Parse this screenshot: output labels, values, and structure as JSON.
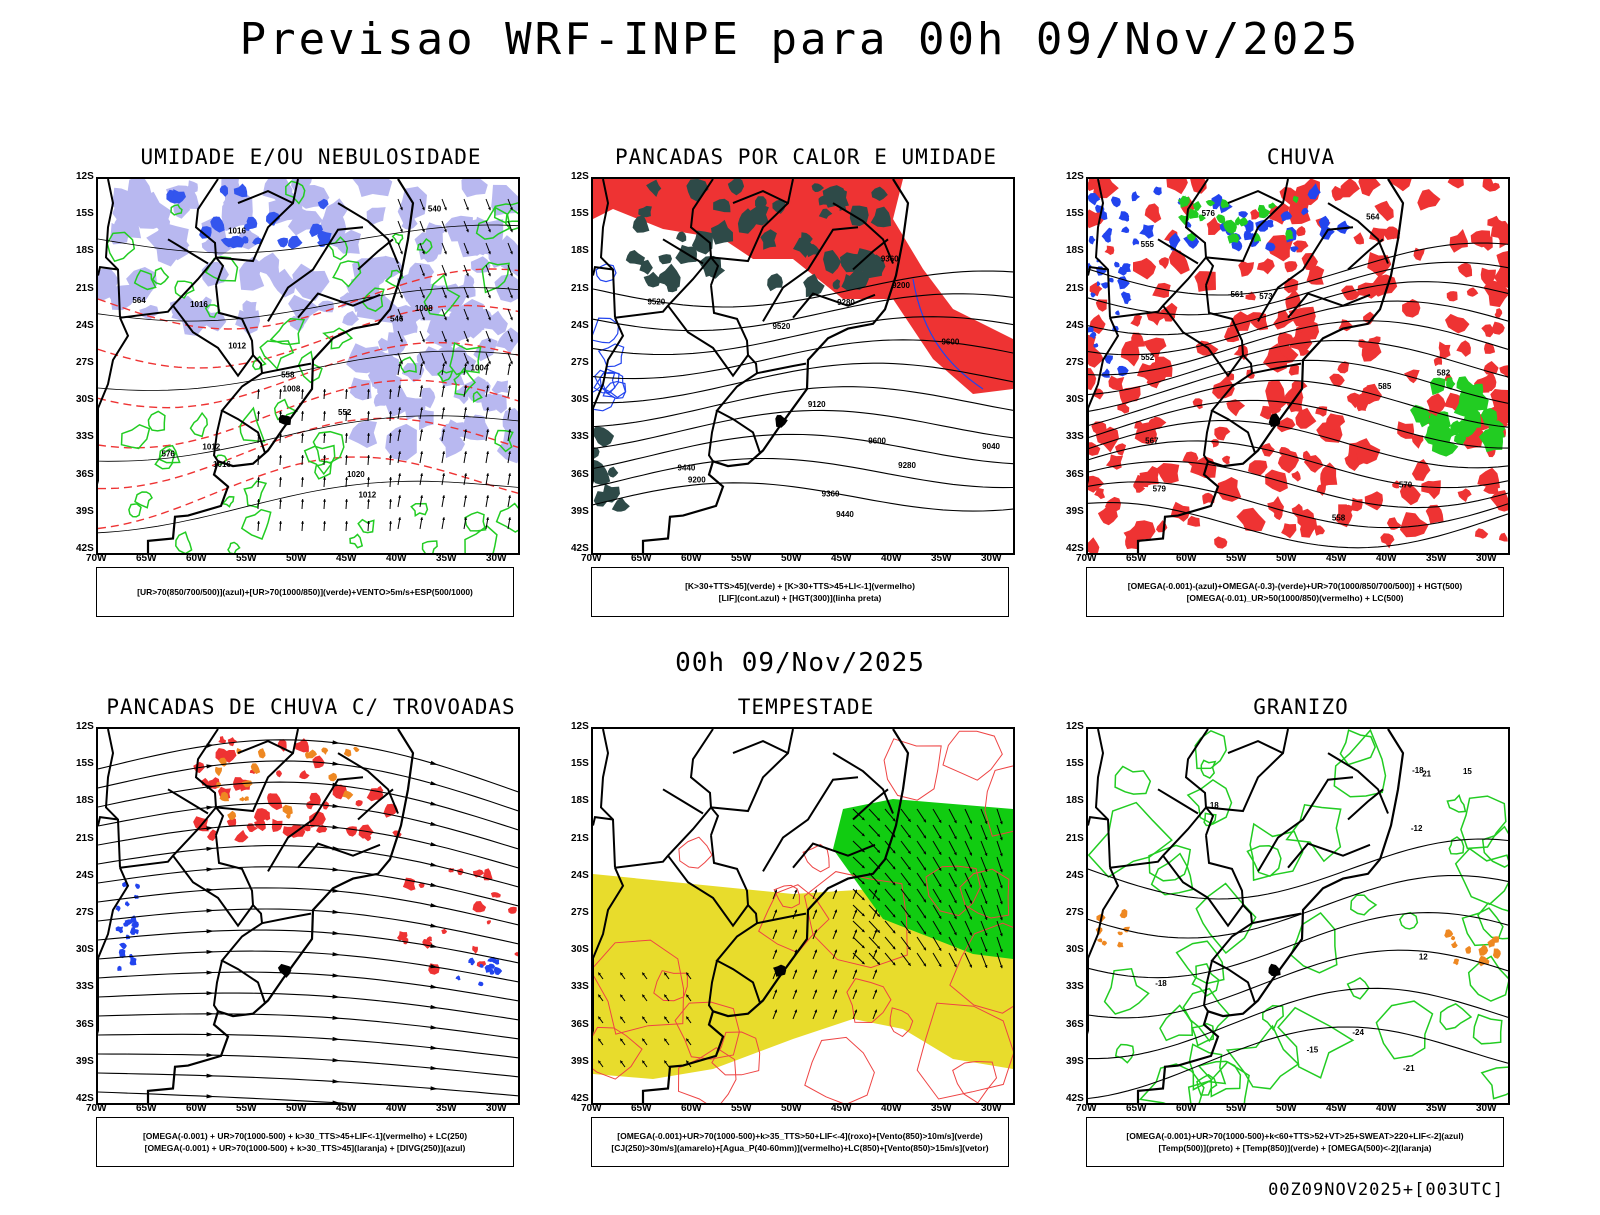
{
  "title": "Previsao WRF-INPE  para 00h 09/Nov/2025",
  "middle_title": "00h 09/Nov/2025",
  "footer": "00Z09NOV2025+[003UTC]",
  "y_ticks": [
    "12S",
    "15S",
    "18S",
    "21S",
    "24S",
    "27S",
    "30S",
    "33S",
    "36S",
    "39S",
    "42S"
  ],
  "x_ticks": [
    "70W",
    "65W",
    "60W",
    "55W",
    "50W",
    "45W",
    "40W",
    "35W",
    "30W"
  ],
  "panels": [
    {
      "title": "UMIDADE E/OU NEBULOSIDADE",
      "legend": [
        "[UR>70(850/700/500)](azul)+[UR>70(1000/850)](verde)+VENTO>5m/s+ESP(500/1000)"
      ],
      "labels": [
        "1012",
        "1016",
        "1012",
        "1016",
        "1008",
        "1020",
        "1004",
        "1012",
        "1008",
        "1016",
        "576",
        "564",
        "558",
        "552",
        "546",
        "540"
      ],
      "colors": {
        "humid_high": "#b8b8f0",
        "humid_low": "#22cc22",
        "thickness": "#ee3333",
        "pressure": "#000000"
      }
    },
    {
      "title": "PANCADAS POR CALOR E UMIDADE",
      "legend": [
        "[K>30+TTS>45](verde) + [K>30+TTS>45+LI<-1](vermelho)",
        "[LIF](cont.azul) + [HGT(300)](linha preta)"
      ],
      "labels": [
        "9600",
        "9520",
        "9440",
        "9360",
        "9280",
        "9200",
        "9120",
        "9040",
        "9600",
        "9520",
        "9440",
        "9360",
        "9280",
        "9200"
      ],
      "colors": {
        "red": "#ee3333",
        "dark": "#2e4a48",
        "lif": "#2244ee"
      }
    },
    {
      "title": "CHUVA",
      "legend": [
        "[OMEGA(-0.001)-(azul)+OMEGA(-0.3)-(verde)+UR>70(1000/850/700/500)] + HGT(500)",
        "[OMEGA(-0.01)_UR>50(1000/850)(vermelho) + LC(500)"
      ],
      "labels": [
        "585",
        "582",
        "579",
        "576",
        "573",
        "570",
        "567",
        "564",
        "561",
        "558",
        "555",
        "552"
      ],
      "colors": {
        "red": "#ee3333",
        "blue": "#2244ee",
        "green": "#22cc22"
      }
    },
    {
      "title": "PANCADAS DE CHUVA C/ TROVOADAS",
      "legend": [
        "[OMEGA(-0.001) + UR>70(1000-500) + k>30_TTS>45+LIF<-1](vermelho) + LC(250)",
        "[OMEGA(-0.001) + UR>70(1000-500) + k>30_TTS>45](laranja) + [DIVG(250)](azul)"
      ],
      "labels": [],
      "colors": {
        "red": "#ee3333",
        "orange": "#ee8822",
        "blue": "#2244ee"
      }
    },
    {
      "title": "TEMPESTADE",
      "legend": [
        "[OMEGA(-0.001)+UR>70(1000-500)+k>35_TTS>50+LIF<-4](roxo)+[Vento(850)>10m/s](verde)",
        "[CJ(250)>30m/s](amarelo)+[Agua_P(40-60mm)](vermelho)+LC(850)+[Vento(850)>15m/s](vetor)"
      ],
      "labels": [],
      "colors": {
        "yellow": "#e8dc2c",
        "green": "#11cc11",
        "red": "#ee4444"
      }
    },
    {
      "title": "GRANIZO",
      "legend": [
        "[OMEGA(-0.001)+UR>70(1000-500)+k<60+TTS>52+VT>25+SWEAT>220+LIF<-2](azul)",
        "[Temp(500)](preto) + [Temp(850)](verde) + [OMEGA(500)<-2](laranja)"
      ],
      "labels": [
        "21",
        "18",
        "15",
        "12",
        "-12",
        "-15",
        "-18",
        "-21",
        "-24",
        "-18"
      ],
      "colors": {
        "green": "#22cc22",
        "orange": "#ee8822",
        "black": "#000000"
      }
    }
  ]
}
